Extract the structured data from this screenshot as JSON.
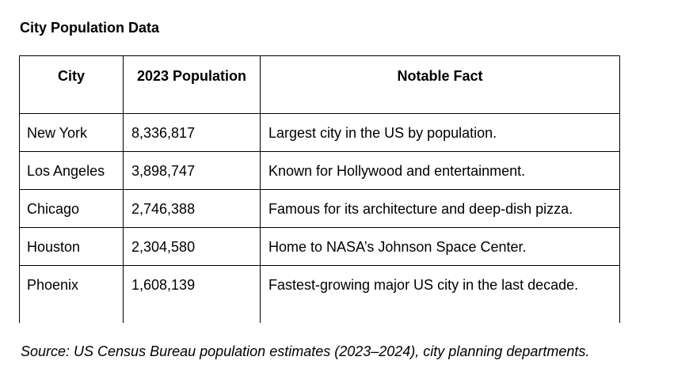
{
  "title": "City Population Data",
  "table": {
    "headers": [
      "City",
      "2023 Population",
      "Notable Fact"
    ],
    "rows": [
      [
        "New York",
        "8,336,817",
        "Largest city in the US by population."
      ],
      [
        "Los Angeles",
        "3,898,747",
        "Known for Hollywood and entertainment."
      ],
      [
        "Chicago",
        "2,746,388",
        "Famous for its architecture and deep-dish pizza."
      ],
      [
        "Houston",
        "2,304,580",
        "Home to NASA’s Johnson Space Center."
      ],
      [
        "Phoenix",
        "1,608,139",
        "Fastest-growing major US city in the last decade."
      ]
    ]
  },
  "source": "Source: US Census Bureau population estimates (2023–2024), city planning departments."
}
